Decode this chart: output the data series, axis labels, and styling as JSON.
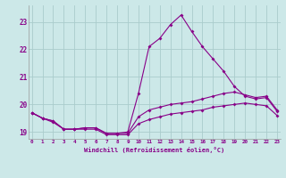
{
  "xlabel": "Windchill (Refroidissement éolien,°C)",
  "bg_color": "#cce8e8",
  "grid_color": "#aacccc",
  "line_color": "#880088",
  "hours": [
    0,
    1,
    2,
    3,
    4,
    5,
    6,
    7,
    8,
    9,
    10,
    11,
    12,
    13,
    14,
    15,
    16,
    17,
    18,
    19,
    20,
    21,
    22,
    23
  ],
  "line_top": [
    19.7,
    19.5,
    19.4,
    19.1,
    19.1,
    19.15,
    19.15,
    18.95,
    18.95,
    19.0,
    20.4,
    22.1,
    22.4,
    22.9,
    23.25,
    22.65,
    22.1,
    21.65,
    21.2,
    20.65,
    20.3,
    20.2,
    20.25,
    19.75
  ],
  "line_mid": [
    19.7,
    19.5,
    19.4,
    19.1,
    19.1,
    19.15,
    19.15,
    18.95,
    18.95,
    18.95,
    19.55,
    19.8,
    19.9,
    20.0,
    20.05,
    20.1,
    20.2,
    20.3,
    20.4,
    20.45,
    20.35,
    20.25,
    20.3,
    19.8
  ],
  "line_bot": [
    19.7,
    19.5,
    19.35,
    19.1,
    19.1,
    19.1,
    19.1,
    18.9,
    18.9,
    18.9,
    19.3,
    19.45,
    19.55,
    19.65,
    19.7,
    19.75,
    19.8,
    19.9,
    19.95,
    20.0,
    20.05,
    20.0,
    19.95,
    19.6
  ],
  "ylim": [
    18.75,
    23.6
  ],
  "yticks": [
    19,
    20,
    21,
    22,
    23
  ],
  "xlim": [
    -0.3,
    23.3
  ]
}
